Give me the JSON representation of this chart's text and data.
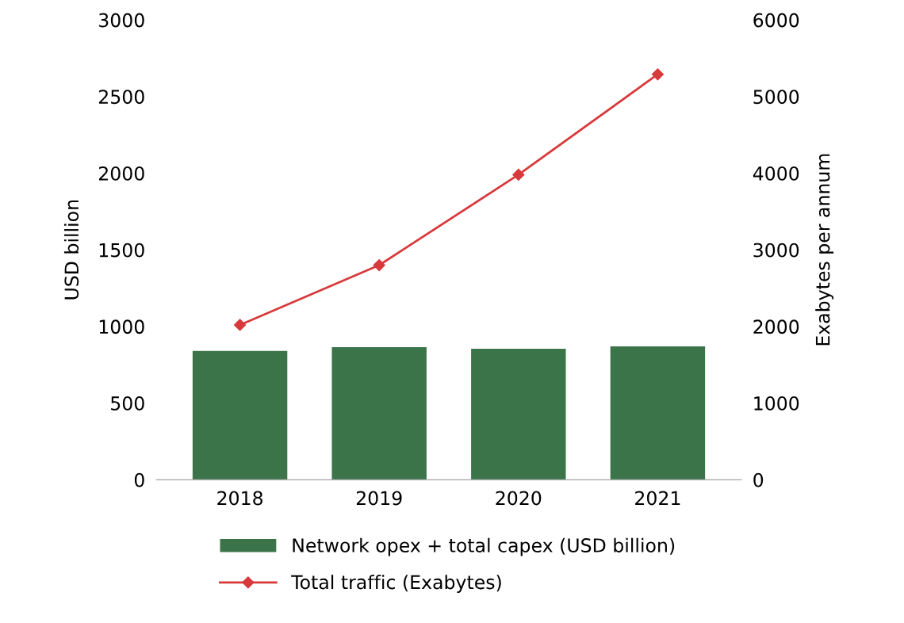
{
  "chart_data": {
    "type": "bar",
    "categories": [
      "2018",
      "2019",
      "2020",
      "2021"
    ],
    "series": [
      {
        "name": "Network opex + total capex (USD billion)",
        "color": "#3b7449",
        "values": [
          840,
          865,
          855,
          870
        ]
      },
      {
        "name": "Total traffic (Exabytes)",
        "type": "line",
        "axis": "y2",
        "color": "#d8393b",
        "values": [
          2020,
          2800,
          3980,
          5290
        ]
      }
    ],
    "ylabel": "USD billion",
    "y2label": "Exabytes per annum",
    "ylim": [
      0,
      3000
    ],
    "yticks": [
      0,
      500,
      1000,
      1500,
      2000,
      2500,
      3000
    ],
    "y2lim": [
      0,
      6000
    ],
    "y2ticks": [
      0,
      1000,
      2000,
      3000,
      4000,
      5000,
      6000
    ],
    "marker": "diamond",
    "line_style": "solid",
    "grid": false,
    "legend": "bottom"
  }
}
